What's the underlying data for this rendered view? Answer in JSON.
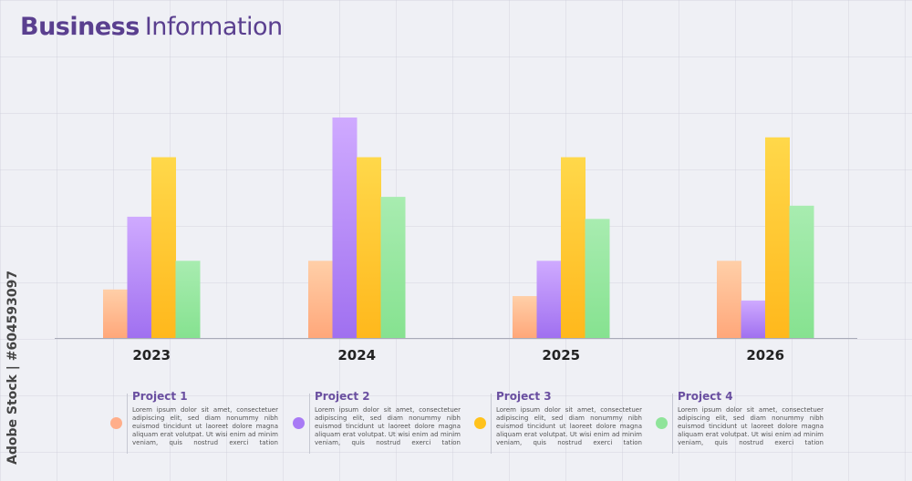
{
  "title": {
    "bold": "Business",
    "light": "Information"
  },
  "side_credit": "Adobe Stock | #604593097",
  "colors": {
    "project1": [
      "#ffcfa8",
      "#ffa77a"
    ],
    "project2": [
      "#cfaaff",
      "#a070f0"
    ],
    "project3": [
      "#ffd84a",
      "#ffb81c"
    ],
    "project4": [
      "#a8ecb0",
      "#86e290"
    ],
    "axis": "#a9abb8",
    "tick": "#222222"
  },
  "legend": [
    {
      "name": "Project 1",
      "color": "#ffae8a",
      "text": "Lorem ipsum dolor sit amet, consectetuer adipiscing elit, sed diam nonummy nibh euismod tincidunt ut laoreet dolore magna aliquam erat volutpat. Ut wisi enim ad minim veniam, quis nostrud exerci tation ullamcorper suscipit lobortis nisl ut"
    },
    {
      "name": "Project 2",
      "color": "#a87af5",
      "text": "Lorem ipsum dolor sit amet, consectetuer adipiscing elit, sed diam nonummy nibh euismod tincidunt ut laoreet dolore magna aliquam erat volutpat. Ut wisi enim ad minim veniam, quis nostrud exerci tation ullamcorper suscipit lobortis nisl ut"
    },
    {
      "name": "Project 3",
      "color": "#ffc21c",
      "text": "Lorem ipsum dolor sit amet, consectetuer adipiscing elit, sed diam nonummy nibh euismod tincidunt ut laoreet dolore magna aliquam erat volutpat. Ut wisi enim ad minim veniam, quis nostrud exerci tation ullamcorper suscipit lobortis nisl ut"
    },
    {
      "name": "Project 4",
      "color": "#8fe49a",
      "text": "Lorem ipsum dolor sit amet, consectetuer adipiscing elit, sed diam nonummy nibh euismod tincidunt ut laoreet dolore magna aliquam erat volutpat. Ut wisi enim ad minim veniam, quis nostrud exerci tation ullamcorper suscipit lobortis nisl ut"
    }
  ],
  "chart_data": {
    "type": "bar",
    "title": "Business Information",
    "xlabel": "",
    "ylabel": "",
    "ylim": [
      0,
      100
    ],
    "grid": false,
    "categories": [
      "2023",
      "2024",
      "2025",
      "2026"
    ],
    "series": [
      {
        "name": "Project 1",
        "values": [
          22,
          35,
          19,
          35
        ]
      },
      {
        "name": "Project 2",
        "values": [
          55,
          100,
          35,
          17
        ]
      },
      {
        "name": "Project 3",
        "values": [
          82,
          82,
          82,
          91
        ]
      },
      {
        "name": "Project 4",
        "values": [
          35,
          64,
          54,
          60
        ]
      }
    ]
  }
}
